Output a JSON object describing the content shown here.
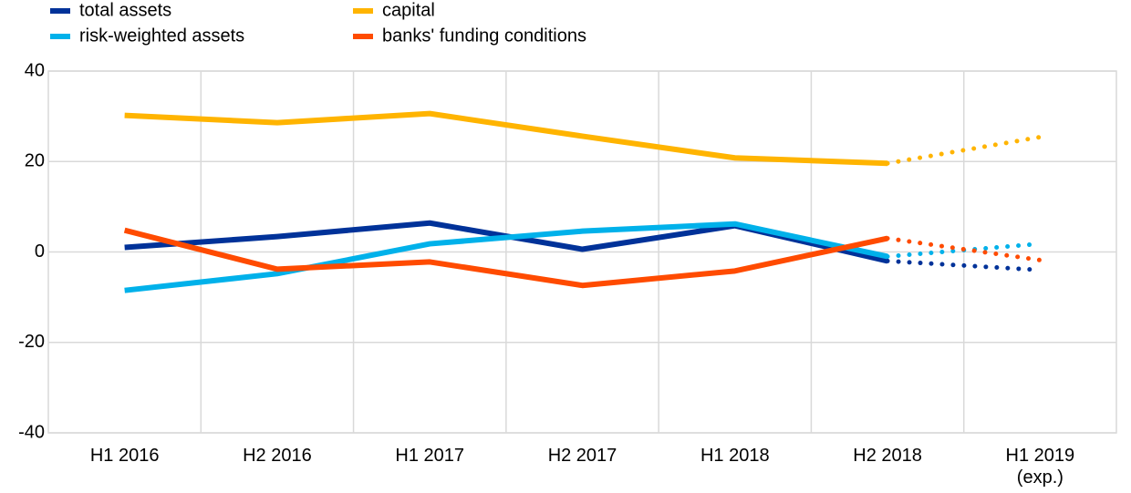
{
  "chart_data": {
    "type": "line",
    "categories": [
      "H1 2016",
      "H2 2016",
      "H1 2017",
      "H2 2017",
      "H1 2018",
      "H2 2018",
      "H1 2019 (exp.)"
    ],
    "series": [
      {
        "name": "total assets",
        "color": "#003299",
        "values": [
          1.0,
          3.4,
          6.4,
          0.6,
          5.8,
          -2.0,
          -4.0
        ]
      },
      {
        "name": "risk-weighted assets",
        "color": "#00b1ea",
        "values": [
          -8.5,
          -4.8,
          1.8,
          4.6,
          6.2,
          -1.0,
          1.8
        ]
      },
      {
        "name": "capital",
        "color": "#ffb400",
        "values": [
          30.2,
          28.6,
          30.6,
          25.6,
          20.8,
          19.6,
          25.4
        ]
      },
      {
        "name": "banks' funding conditions",
        "color": "#ff4b00",
        "values": [
          4.8,
          -3.8,
          -2.2,
          -7.4,
          -4.2,
          3.0,
          -1.8
        ]
      }
    ],
    "ylim": [
      -40,
      40
    ],
    "yticks": [
      -40,
      -20,
      0,
      20,
      40
    ],
    "grid": true
  }
}
